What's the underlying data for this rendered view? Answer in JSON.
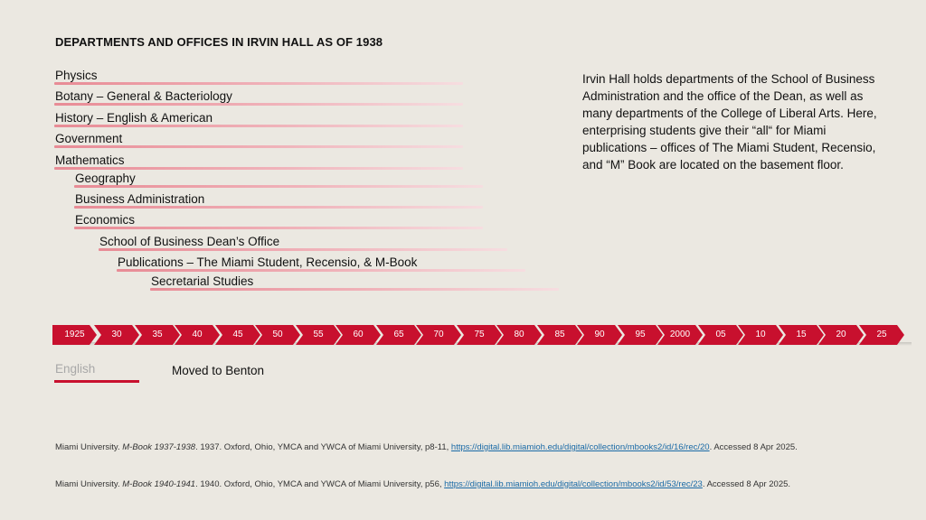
{
  "title": "DEPARTMENTS AND OFFICES IN IRVIN HALL AS OF 1938",
  "departments": [
    "Physics",
    "Botany – General & Bacteriology",
    "History – English & American",
    "Government",
    "Mathematics",
    "Geography",
    "Business Administration",
    "Economics",
    "School of Business Dean’s Office",
    "Publications – The Miami Student, Recensio, & M-Book",
    "Secretarial Studies"
  ],
  "description": "Irvin Hall holds departments of the School of Business Administration and the office of the Dean, as well as many departments of the College of Liberal Arts. Here, enterprising students give their “all“ for Miami publications  – offices of The Miami Student, Recensio, and “M” Book are located on the basement floor.",
  "timeline": [
    "1925",
    "30",
    "35",
    "40",
    "45",
    "50",
    "55",
    "60",
    "65",
    "70",
    "75",
    "80",
    "85",
    "90",
    "95",
    "2000",
    "05",
    "10",
    "15",
    "20",
    "25"
  ],
  "legend": {
    "english": "English",
    "moved": "Moved to Benton"
  },
  "citations": [
    {
      "prefix": "Miami University. ",
      "italic": "M-Book 1937-1938",
      "middle": ". 1937. Oxford, Ohio, YMCA and YWCA of Miami University, p8-11, ",
      "link": "https://digital.lib.miamioh.edu/digital/collection/mbooks2/id/16/rec/20",
      "suffix": ". Accessed 8 Apr 2025."
    },
    {
      "prefix": "Miami University. ",
      "italic": "M-Book 1940-1941",
      "middle": ". 1940. Oxford, Ohio, YMCA and YWCA of Miami University, p56, ",
      "link": "https://digital.lib.miamioh.edu/digital/collection/mbooks2/id/53/rec/23",
      "suffix": ". Accessed 8 Apr 2025."
    }
  ],
  "colors": {
    "background": "#ebe8e1",
    "accent": "#c8102e",
    "bar_pink": "#e88b95",
    "link": "#1a6aa6"
  }
}
